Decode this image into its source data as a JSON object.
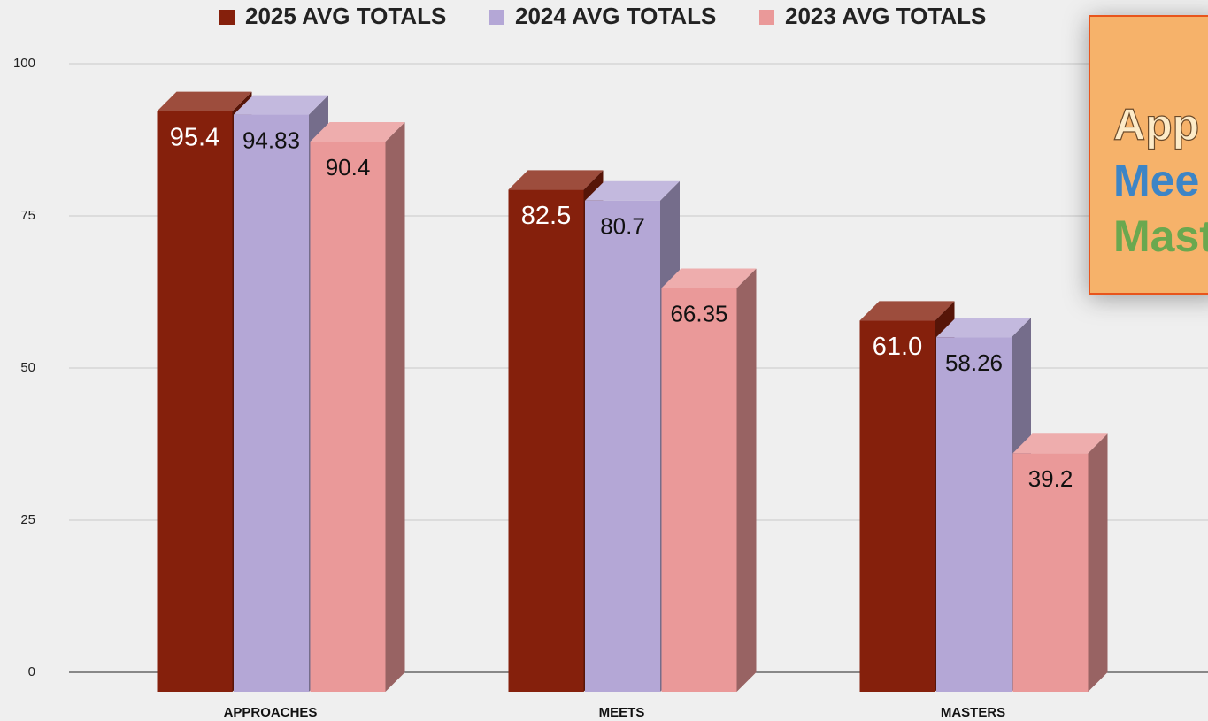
{
  "chart_data": {
    "type": "bar3d",
    "categories": [
      "APPROACHES",
      "MEETS",
      "MASTERS"
    ],
    "series": [
      {
        "name": "2025 AVG TOTALS",
        "color": "#85200c",
        "values": [
          95.4,
          82.5,
          61
        ],
        "value_labels": [
          "95.4",
          "82.5",
          "61.0"
        ]
      },
      {
        "name": "2024 AVG TOTALS",
        "color": "#b4a7d6",
        "values": [
          94.83,
          80.7,
          58.26
        ]
      },
      {
        "name": "2023 AVG TOTALS",
        "color": "#ea9999",
        "values": [
          90.4,
          66.35,
          39.2
        ]
      }
    ],
    "ylim": [
      0,
      100
    ],
    "yticks": [
      0,
      25,
      50,
      75,
      100
    ],
    "grid": true,
    "legend": "top"
  },
  "overlay": {
    "lines": [
      "App",
      "Mee",
      "Mast"
    ]
  }
}
